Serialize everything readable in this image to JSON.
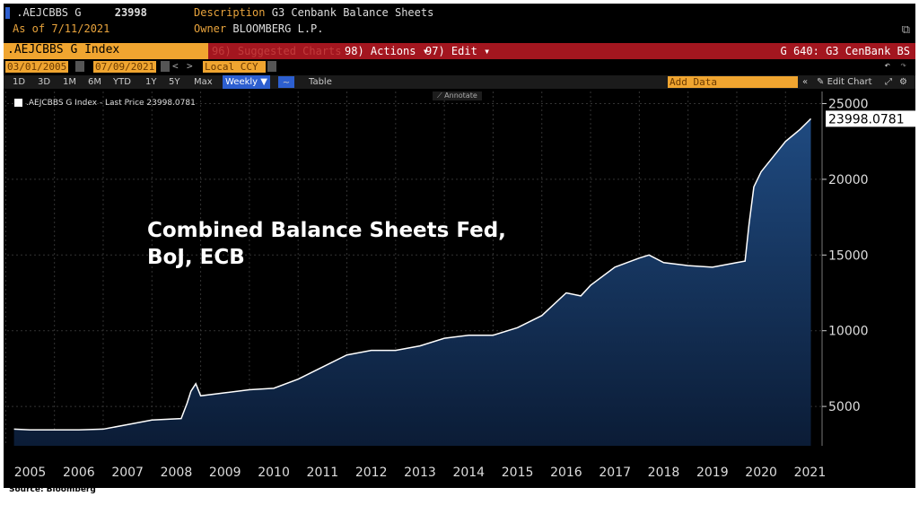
{
  "header": {
    "ticker": ".AEJCBBS G",
    "value": "23998",
    "as_of": "As of 7/11/2021",
    "desc_label": "Description",
    "desc": "G3 Cenbank Balance Sheets",
    "owner_label": "Owner",
    "owner": "BLOOMBERG L.P."
  },
  "toolbar": {
    "index": ".AEJCBBS G Index",
    "suggested": "96) Suggested Charts",
    "actions": "98) Actions ▾",
    "edit": "97) Edit ▾",
    "chart_name": "G 640: G3 CenBank BS",
    "start_date": "03/01/2005",
    "end_date": "07/09/2021",
    "currency": "Local CCY",
    "add_data": "Add Data",
    "edit_chart": "Edit Chart",
    "annotate": "Annotate"
  },
  "periods": [
    "1D",
    "3D",
    "1M",
    "6M",
    "YTD",
    "1Y",
    "5Y",
    "Max"
  ],
  "frequency": "Weekly ▼",
  "table_label": "Table",
  "legend": ".AEJCBBS G Index - Last Price 23998.0781",
  "last_price_label": "23998.0781",
  "source": "Source: Bloomberg",
  "colors": {
    "line": "#ffffff",
    "fill_top": "#1f4a80",
    "fill_bottom": "#0b1c36",
    "background": "#000000",
    "accent_orange": "#f0a530",
    "accent_red": "#a3161f"
  },
  "chart_data": {
    "type": "area",
    "annotation": "Combined Balance Sheets Fed, BoJ, ECB",
    "x": [
      2005.17,
      2005.5,
      2006,
      2006.5,
      2007,
      2007.5,
      2008,
      2008.6,
      2008.72,
      2008.8,
      2008.9,
      2009,
      2009.5,
      2010,
      2010.5,
      2011,
      2011.5,
      2012,
      2012.5,
      2013,
      2013.5,
      2014,
      2014.5,
      2015,
      2015.5,
      2016,
      2016.5,
      2016.8,
      2017,
      2017.5,
      2018,
      2018.2,
      2018.5,
      2019,
      2019.5,
      2020,
      2020.17,
      2020.25,
      2020.35,
      2020.5,
      2020.75,
      2021,
      2021.3,
      2021.52
    ],
    "y": [
      3500,
      3450,
      3450,
      3450,
      3500,
      3800,
      4100,
      4200,
      5200,
      6000,
      6500,
      5700,
      5900,
      6100,
      6200,
      6800,
      7600,
      8400,
      8700,
      8700,
      9000,
      9500,
      9700,
      9700,
      10200,
      11000,
      12500,
      12300,
      13000,
      14200,
      14800,
      15000,
      14500,
      14300,
      14200,
      14500,
      14600,
      17000,
      19500,
      20500,
      21500,
      22500,
      23300,
      24000
    ],
    "xticks": [
      "2005",
      "2006",
      "2007",
      "2008",
      "2009",
      "2010",
      "2011",
      "2012",
      "2013",
      "2014",
      "2015",
      "2016",
      "2017",
      "2018",
      "2019",
      "2020",
      "2021"
    ],
    "yticks": [
      5000,
      10000,
      15000,
      20000,
      25000
    ],
    "ylim": [
      2400,
      25800
    ],
    "xlim": [
      2005.03,
      2021.75
    ],
    "y_axis": "right",
    "grid": true
  }
}
